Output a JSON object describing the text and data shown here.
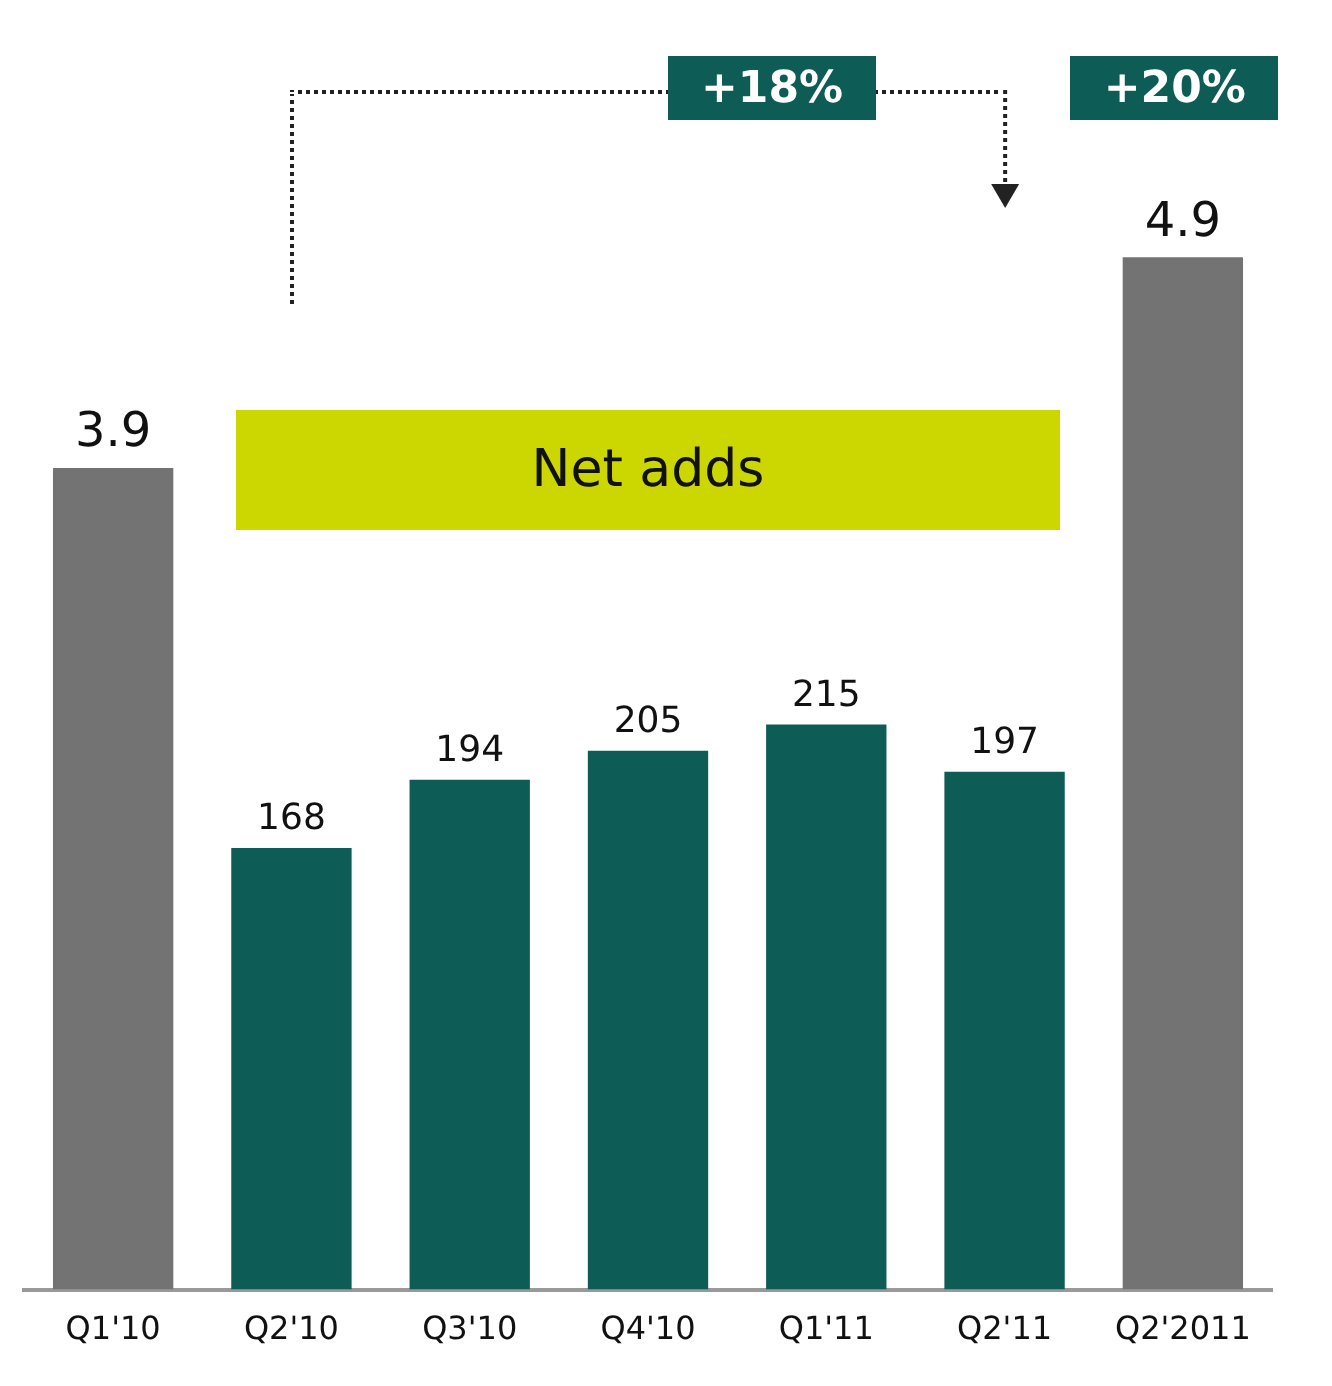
{
  "chart_data": {
    "type": "bar",
    "categories": [
      "Q1'10",
      "Q2'10",
      "Q3'10",
      "Q4'10",
      "Q1'11",
      "Q2'11",
      "Q2'2011"
    ],
    "series": [
      {
        "color": "#737373",
        "values": [
          3.9,
          null,
          null,
          null,
          null,
          null,
          4.9
        ]
      },
      {
        "color": "#0d5c55",
        "axis": "y2",
        "values": [
          null,
          168,
          194,
          205,
          215,
          197,
          null
        ]
      }
    ],
    "data_labels": true,
    "annotations": [
      "+18%",
      "+20%",
      "Net adds"
    ],
    "tick_labels": "x",
    "grid": false,
    "legend": false
  }
}
